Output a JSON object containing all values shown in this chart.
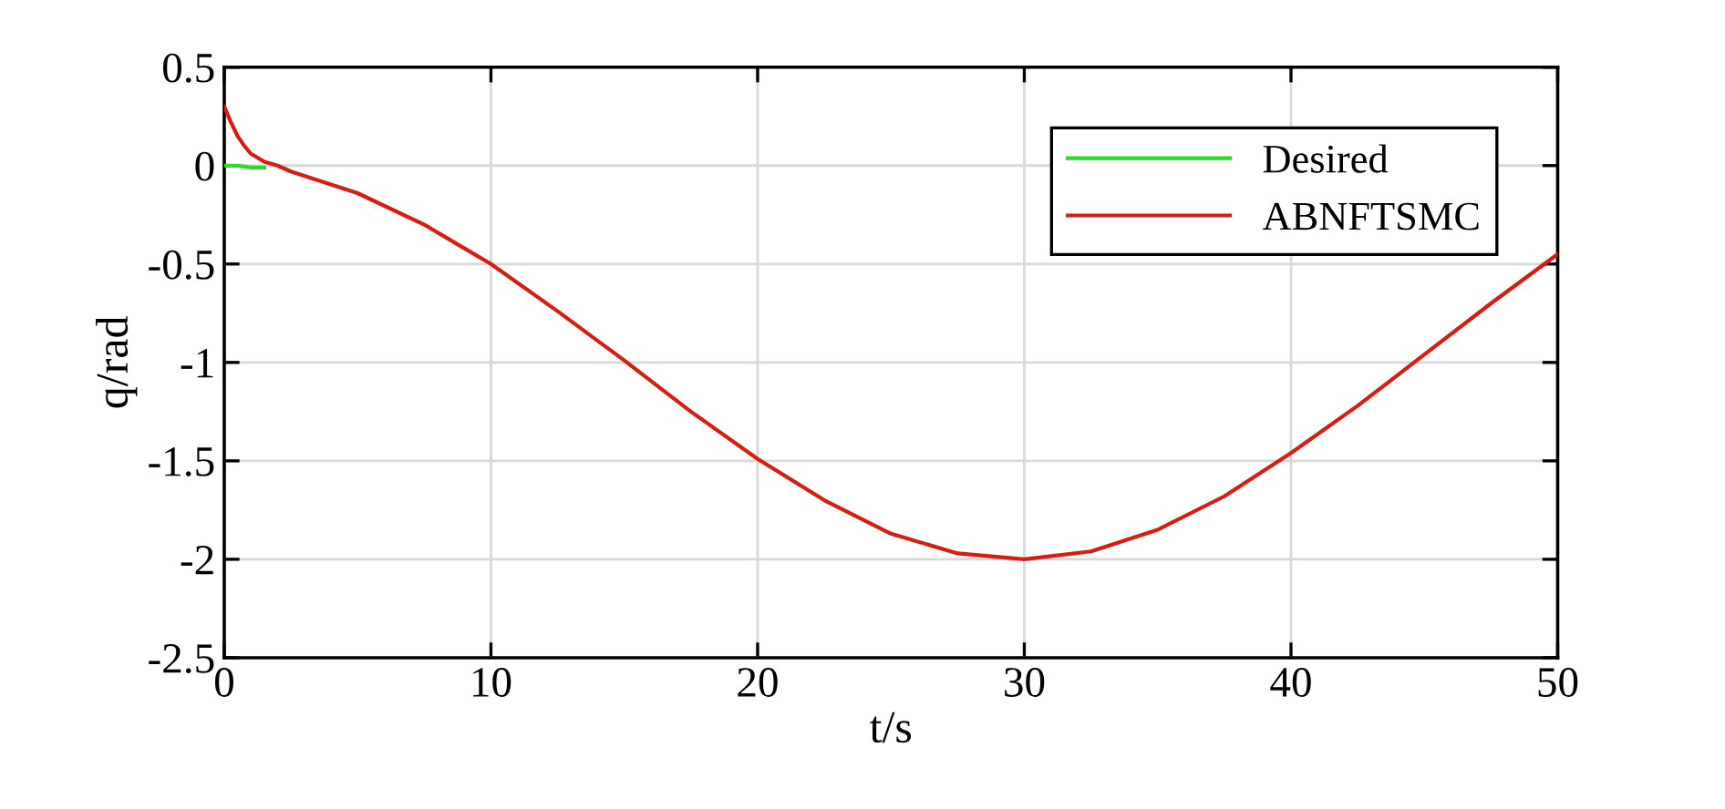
{
  "chart_data": {
    "type": "line",
    "xlabel": "t/s",
    "ylabel": "q/rad",
    "xlim": [
      0,
      50
    ],
    "ylim": [
      -2.5,
      0.5
    ],
    "xticks": [
      0,
      10,
      20,
      30,
      40,
      50
    ],
    "yticks": [
      -2.5,
      -2,
      -1.5,
      -1,
      -0.5,
      0,
      0.5
    ],
    "grid": true,
    "legend": "top right",
    "series": [
      {
        "name": "Desired",
        "color": "#22e022",
        "x": [
          0,
          0.5,
          1,
          1.5
        ],
        "values": [
          0,
          0,
          -0.01,
          -0.01
        ]
      },
      {
        "name": "ABNFTSMC",
        "color": "#d81c10",
        "x": [
          0,
          0.25,
          0.5,
          0.75,
          1,
          1.5,
          2,
          2.5,
          5,
          7.5,
          10,
          12.5,
          15,
          17.5,
          20,
          22.5,
          25,
          27.5,
          30,
          32.5,
          35,
          37.5,
          40,
          42.5,
          45,
          47.5,
          50
        ],
        "values": [
          0.3,
          0.22,
          0.15,
          0.1,
          0.06,
          0.02,
          0,
          -0.03,
          -0.14,
          -0.3,
          -0.5,
          -0.74,
          -0.99,
          -1.25,
          -1.49,
          -1.7,
          -1.87,
          -1.97,
          -2,
          -1.96,
          -1.85,
          -1.68,
          -1.46,
          -1.22,
          -0.96,
          -0.7,
          -0.45
        ]
      }
    ]
  }
}
